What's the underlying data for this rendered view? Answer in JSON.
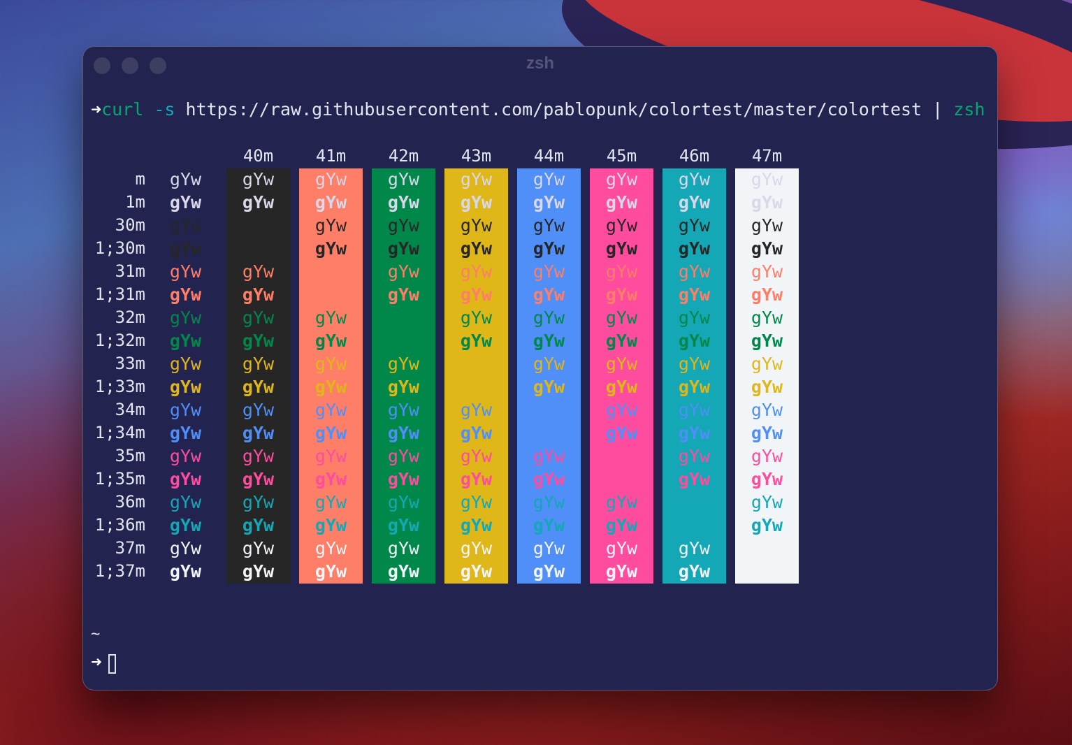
{
  "window": {
    "title": "zsh"
  },
  "prompt": {
    "arrow": "➜",
    "command": "curl",
    "flag": "-s",
    "url": "https://raw.githubusercontent.com/pablopunk/colortest/master/colortest",
    "pipe": "|",
    "pipe_target": "zsh"
  },
  "colortest": {
    "sample": "gYw",
    "bg_codes": [
      "40m",
      "41m",
      "42m",
      "43m",
      "44m",
      "45m",
      "46m",
      "47m"
    ],
    "fg_codes": [
      "m",
      "1m",
      "30m",
      "1;30m",
      "31m",
      "1;31m",
      "32m",
      "1;32m",
      "33m",
      "1;33m",
      "34m",
      "1;34m",
      "35m",
      "1;35m",
      "36m",
      "1;36m",
      "37m",
      "1;37m"
    ],
    "bg_colors": [
      "#262626",
      "#ff7e67",
      "#00884a",
      "#e0b718",
      "#4f8ff7",
      "#ff4c9e",
      "#14a7b5",
      "#f2f5f7"
    ],
    "fg_colors": {
      "default": "#d8d8e8",
      "30": "#262626",
      "31": "#ff7e67",
      "32": "#00884a",
      "33": "#e0b718",
      "34": "#4f8ff7",
      "35": "#ff4c9e",
      "36": "#14a7b5",
      "37": "#f2f5f7"
    }
  },
  "footer": {
    "tilde": "~",
    "arrow": "➜"
  }
}
